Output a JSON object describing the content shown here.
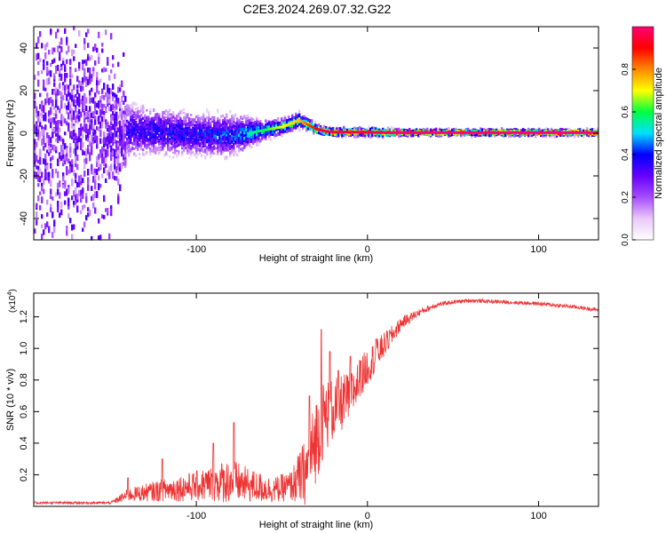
{
  "title": "C2E3.2024.269.07.32.G22",
  "chart_data": [
    {
      "type": "heatmap",
      "xlabel": "Height of straight line (km)",
      "ylabel": "Frequency (Hz)",
      "xlim": [
        -195,
        135
      ],
      "ylim": [
        -50,
        50
      ],
      "xticks": [
        -100,
        0,
        100
      ],
      "xtick_labels": [
        "-100",
        "0",
        "100"
      ],
      "yticks": [
        -40,
        -20,
        0,
        20,
        40
      ],
      "ytick_labels": [
        "-40",
        "-20",
        "0",
        "20",
        "40"
      ],
      "colorbar": {
        "label": "Normalized spectral amplitude",
        "range": [
          0,
          1
        ],
        "ticks": [
          0.0,
          0.2,
          0.4,
          0.6,
          0.8
        ],
        "tick_labels": [
          "0.0",
          "0.2",
          "0.4",
          "0.6",
          "0.8"
        ],
        "colors": [
          "#ffffff",
          "#e9c8f8",
          "#a64dff",
          "#6600ff",
          "#0000ff",
          "#00e0ff",
          "#00ff40",
          "#ffff00",
          "#ff8800",
          "#ff0000",
          "#ff0077"
        ]
      },
      "ridge": {
        "x": [
          -195,
          -160,
          -140,
          -120,
          -100,
          -80,
          -70,
          -60,
          -50,
          -40,
          -35,
          -30,
          -25,
          -20,
          -10,
          0,
          10,
          20,
          135
        ],
        "center_hz": [
          2,
          1,
          1.5,
          0.5,
          -0.5,
          -1,
          0,
          1.5,
          3,
          6,
          4,
          2,
          1,
          0.5,
          0.5,
          0.5,
          0.3,
          0.3,
          0.3
        ],
        "spread_hz": [
          45,
          40,
          14,
          12,
          11,
          11,
          8,
          5,
          4,
          4,
          3,
          2.5,
          2,
          2,
          2,
          2,
          2,
          1.5,
          1.5
        ],
        "peak_amplitude": [
          0.2,
          0.25,
          0.4,
          0.45,
          0.45,
          0.5,
          0.55,
          0.6,
          0.7,
          0.75,
          0.85,
          0.9,
          0.95,
          0.95,
          0.95,
          0.95,
          0.97,
          1.0,
          1.0
        ]
      }
    },
    {
      "type": "line",
      "xlabel": "Height of straight line (km)",
      "ylabel": "SNR (10 * v/v)",
      "y_multiplier": "(x10",
      "y_multiplier_exp": "4",
      "y_multiplier_close": ")",
      "xlim": [
        -195,
        135
      ],
      "ylim": [
        0,
        1.35
      ],
      "xticks": [
        -100,
        0,
        100
      ],
      "xtick_labels": [
        "-100",
        "0",
        "100"
      ],
      "yticks": [
        0.2,
        0.4,
        0.6,
        0.8,
        1.0,
        1.2
      ],
      "ytick_labels": [
        "0.2",
        "0.4",
        "0.6",
        "0.8",
        "1.0",
        "1.2"
      ],
      "color": "#ee3333",
      "series_envelope": {
        "x": [
          -195,
          -150,
          -140,
          -120,
          -100,
          -80,
          -70,
          -55,
          -45,
          -35,
          -30,
          -25,
          -20,
          -10,
          0,
          10,
          20,
          30,
          40,
          50,
          60,
          80,
          100,
          120,
          135
        ],
        "base": [
          0.02,
          0.02,
          0.06,
          0.08,
          0.1,
          0.12,
          0.1,
          0.08,
          0.1,
          0.15,
          0.35,
          0.5,
          0.55,
          0.65,
          0.85,
          1.0,
          1.15,
          1.22,
          1.27,
          1.29,
          1.3,
          1.29,
          1.28,
          1.26,
          1.24
        ],
        "noise": [
          0.01,
          0.01,
          0.05,
          0.09,
          0.12,
          0.18,
          0.14,
          0.1,
          0.12,
          0.3,
          0.35,
          0.3,
          0.25,
          0.2,
          0.15,
          0.1,
          0.05,
          0.03,
          0.02,
          0.015,
          0.015,
          0.015,
          0.015,
          0.015,
          0.015
        ],
        "spikes": [
          [
            -78,
            0.53
          ],
          [
            -90,
            0.4
          ],
          [
            -120,
            0.3
          ],
          [
            -140,
            0.18
          ],
          [
            -34,
            0.7
          ],
          [
            -27,
            1.12
          ],
          [
            -22,
            0.98
          ],
          [
            -17,
            0.86
          ],
          [
            -10,
            0.95
          ],
          [
            -4,
            0.92
          ],
          [
            5,
            1.06
          ]
        ]
      }
    }
  ]
}
